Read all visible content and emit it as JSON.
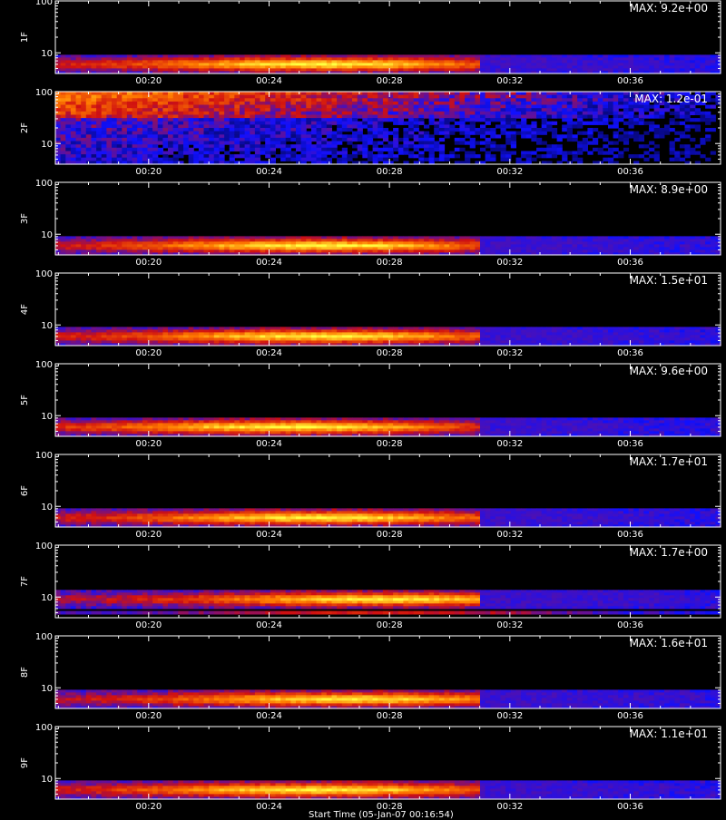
{
  "chart_data": {
    "type": "heatmap",
    "y_scale": "log",
    "colormap": [
      "#000000",
      "#1010ff",
      "#d01010",
      "#ff7a00",
      "#ffff40"
    ],
    "x_tick_labels": [
      "00:20",
      "00:24",
      "00:28",
      "00:32",
      "00:36"
    ],
    "y_tick_labels": [
      "10",
      "100"
    ],
    "footer_label": "Start Time (05-Jan-07 00:16:54)",
    "panels": [
      {
        "name": "1F",
        "max_label": "MAX: 9.2e+00",
        "band": "low",
        "peak_time": "00:26"
      },
      {
        "name": "2F",
        "max_label": "MAX: 1.2e-01",
        "band": "high",
        "peak_time": "00:18"
      },
      {
        "name": "3F",
        "max_label": "MAX: 8.9e+00",
        "band": "low",
        "peak_time": "00:26"
      },
      {
        "name": "4F",
        "max_label": "MAX: 1.5e+01",
        "band": "low",
        "peak_time": "00:26"
      },
      {
        "name": "5F",
        "max_label": "MAX: 9.6e+00",
        "band": "low",
        "peak_time": "00:25"
      },
      {
        "name": "6F",
        "max_label": "MAX: 1.7e+01",
        "band": "low",
        "peak_time": "00:26"
      },
      {
        "name": "7F",
        "max_label": "MAX: 1.7e+00",
        "band": "mid",
        "peak_time": "00:28"
      },
      {
        "name": "8F",
        "max_label": "MAX: 1.6e+01",
        "band": "low",
        "peak_time": "00:27"
      },
      {
        "name": "9F",
        "max_label": "MAX: 1.1e+01",
        "band": "low",
        "peak_time": "00:26"
      }
    ]
  }
}
